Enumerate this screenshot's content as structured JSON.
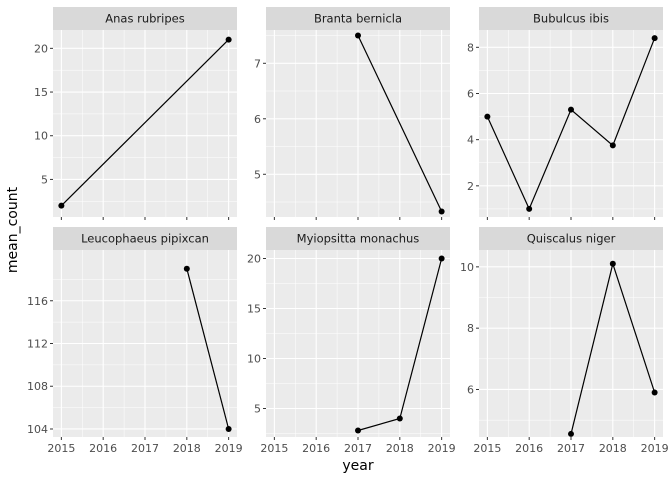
{
  "chart_data": {
    "type": "line",
    "xlabel": "year",
    "ylabel": "mean_count",
    "x_ticks": [
      2015,
      2016,
      2017,
      2018,
      2019
    ],
    "xlim": [
      2014.8,
      2019.2
    ],
    "grid": true,
    "colors": {
      "panel_bg": "#ebebeb",
      "grid_major": "#ffffff",
      "strip_bg": "#d9d9d9",
      "line": "#000000"
    },
    "panels": [
      {
        "name": "Anas rubripes",
        "ylim": [
          0.7,
          22.1
        ],
        "y_ticks": [
          5,
          10,
          15,
          20
        ],
        "y_minor": [
          2.5,
          7.5,
          12.5,
          17.5
        ],
        "points": [
          [
            2015,
            2.0
          ],
          [
            2019,
            21.0
          ]
        ]
      },
      {
        "name": "Branta bernicla",
        "ylim": [
          4.23,
          7.6
        ],
        "y_ticks": [
          5,
          6,
          7
        ],
        "y_minor": [
          4.5,
          5.5,
          6.5,
          7.5
        ],
        "points": [
          [
            2017,
            7.5
          ],
          [
            2019,
            4.33
          ]
        ]
      },
      {
        "name": "Bubulcus ibis",
        "ylim": [
          0.65,
          8.75
        ],
        "y_ticks": [
          2,
          4,
          6,
          8
        ],
        "y_minor": [
          1,
          3,
          5,
          7
        ],
        "points": [
          [
            2015,
            5.0
          ],
          [
            2016,
            1.0
          ],
          [
            2017,
            5.3
          ],
          [
            2018,
            3.75
          ],
          [
            2019,
            8.4
          ]
        ]
      },
      {
        "name": "Leucophaeus pipixcan",
        "ylim": [
          103.25,
          120.75
        ],
        "y_ticks": [
          104,
          108,
          112,
          116
        ],
        "y_minor": [
          106,
          110,
          114,
          118
        ],
        "points": [
          [
            2018,
            119.0
          ],
          [
            2019,
            104.0
          ]
        ]
      },
      {
        "name": "Myiopsitta monachus",
        "ylim": [
          2.15,
          20.85
        ],
        "y_ticks": [
          5,
          10,
          15,
          20
        ],
        "y_minor": [
          2.5,
          7.5,
          12.5,
          17.5
        ],
        "points": [
          [
            2017,
            2.8
          ],
          [
            2018,
            4.0
          ],
          [
            2019,
            20.0
          ]
        ]
      },
      {
        "name": "Quiscalus niger",
        "ylim": [
          4.45,
          10.55
        ],
        "y_ticks": [
          6,
          8,
          10
        ],
        "y_minor": [
          5,
          7,
          9
        ],
        "points": [
          [
            2017,
            4.55
          ],
          [
            2018,
            10.1
          ],
          [
            2019,
            5.9
          ]
        ]
      }
    ]
  }
}
